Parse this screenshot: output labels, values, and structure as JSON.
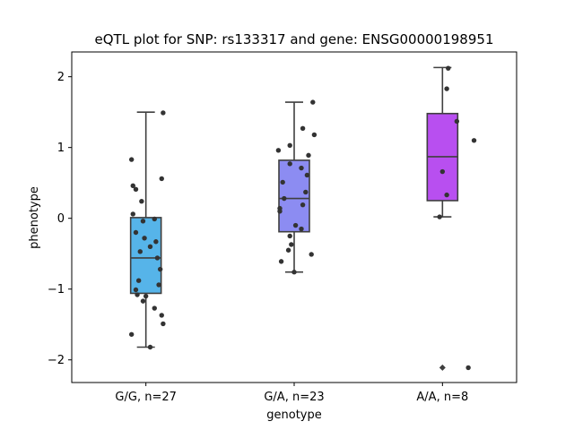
{
  "chart_data": {
    "type": "box",
    "title": "eQTL plot for SNP: rs133317 and gene: ENSG00000198951",
    "xlabel": "genotype",
    "ylabel": "phenotype",
    "categories": [
      "G/G, n=27",
      "G/A, n=23",
      "A/A, n=8"
    ],
    "ylim": [
      -2.32,
      2.35
    ],
    "yticks": [
      -2,
      -1,
      0,
      1,
      2
    ],
    "ytick_labels": [
      "−2",
      "−1",
      "0",
      "1",
      "2"
    ],
    "grid": false,
    "boxes": [
      {
        "category": "G/G, n=27",
        "color": "#56b4e9",
        "q1": -1.06,
        "median": -0.56,
        "q3": 0.01,
        "whisker_low": -1.82,
        "whisker_high": 1.5,
        "outliers": []
      },
      {
        "category": "G/A, n=23",
        "color": "#8c8cf2",
        "q1": -0.19,
        "median": 0.28,
        "q3": 0.82,
        "whisker_low": -0.76,
        "whisker_high": 1.64,
        "outliers": []
      },
      {
        "category": "A/A, n=8",
        "color": "#b84ff0",
        "q1": 0.25,
        "median": 0.87,
        "q3": 1.48,
        "whisker_low": 0.02,
        "whisker_high": 2.13,
        "outliers": [
          -2.11
        ]
      }
    ],
    "points": [
      [
        [
          0.12,
          1.49
        ],
        [
          -0.1,
          0.83
        ],
        [
          0.11,
          0.56
        ],
        [
          -0.09,
          0.46
        ],
        [
          -0.07,
          0.41
        ],
        [
          -0.03,
          0.24
        ],
        [
          -0.09,
          0.06
        ],
        [
          0.06,
          -0.01
        ],
        [
          -0.02,
          -0.04
        ],
        [
          -0.07,
          -0.2
        ],
        [
          -0.01,
          -0.28
        ],
        [
          0.03,
          -0.4
        ],
        [
          0.07,
          -0.33
        ],
        [
          -0.04,
          -0.47
        ],
        [
          0.08,
          -0.56
        ],
        [
          0.1,
          -0.72
        ],
        [
          -0.05,
          -0.88
        ],
        [
          0.09,
          -0.94
        ],
        [
          -0.07,
          -1.01
        ],
        [
          0.0,
          -1.1
        ],
        [
          -0.02,
          -1.17
        ],
        [
          0.06,
          -1.27
        ],
        [
          0.11,
          -1.37
        ],
        [
          -0.06,
          -1.08
        ],
        [
          0.12,
          -1.49
        ],
        [
          -0.1,
          -1.64
        ],
        [
          0.03,
          -1.82
        ]
      ],
      [
        [
          0.13,
          1.64
        ],
        [
          0.06,
          1.27
        ],
        [
          0.14,
          1.18
        ],
        [
          -0.11,
          0.96
        ],
        [
          -0.03,
          1.03
        ],
        [
          0.1,
          0.89
        ],
        [
          -0.03,
          0.77
        ],
        [
          0.05,
          0.71
        ],
        [
          0.09,
          0.61
        ],
        [
          -0.08,
          0.51
        ],
        [
          0.08,
          0.37
        ],
        [
          -0.07,
          0.28
        ],
        [
          0.06,
          0.19
        ],
        [
          -0.1,
          0.14
        ],
        [
          -0.1,
          0.1
        ],
        [
          0.01,
          -0.1
        ],
        [
          0.05,
          -0.15
        ],
        [
          -0.02,
          -0.37
        ],
        [
          -0.04,
          -0.45
        ],
        [
          0.12,
          -0.51
        ],
        [
          -0.09,
          -0.61
        ],
        [
          0.0,
          -0.76
        ],
        [
          -0.03,
          -0.25
        ]
      ],
      [
        [
          0.04,
          2.12
        ],
        [
          0.03,
          1.83
        ],
        [
          0.1,
          1.37
        ],
        [
          0.22,
          1.1
        ],
        [
          0.0,
          0.66
        ],
        [
          0.03,
          0.33
        ],
        [
          -0.02,
          0.02
        ],
        [
          0.18,
          -2.11
        ]
      ]
    ]
  }
}
